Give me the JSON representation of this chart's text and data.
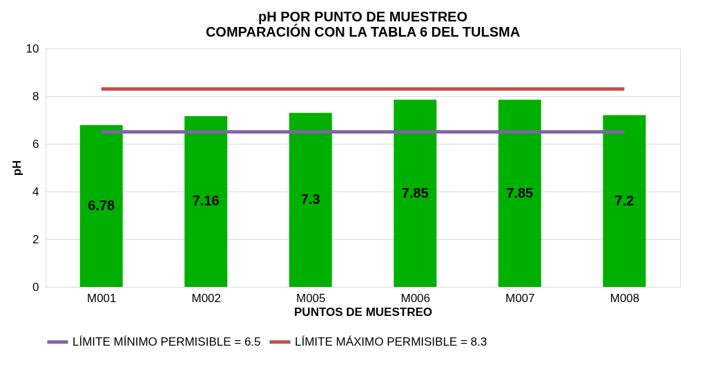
{
  "chart_data": {
    "type": "bar",
    "title": "pH POR PUNTO DE MUESTREO\nCOMPARACIÓN CON LA TABLA 6 DEL TULSMA",
    "xlabel": "PUNTOS DE MUESTREO",
    "ylabel": "pH",
    "categories": [
      "M001",
      "M002",
      "M005",
      "M006",
      "M007",
      "M008"
    ],
    "series": [
      {
        "color": "#00b000",
        "values": [
          6.78,
          7.16,
          7.3,
          7.85,
          7.85,
          7.2
        ],
        "value_labels": [
          "6.78",
          "7.16",
          "7.3",
          "7.85",
          "7.85",
          "7.2"
        ]
      },
      {
        "type": "line",
        "name": "LÍMITE MÍNIMO PERMISIBLE = 6.5",
        "color": "#8064a2",
        "values": [
          6.5,
          6.5,
          6.5,
          6.5,
          6.5,
          6.5
        ]
      },
      {
        "type": "line",
        "name": "LÍMITE MÁXIMO PERMISIBLE = 8.3",
        "color": "#c0504d",
        "values": [
          8.3,
          8.3,
          8.3,
          8.3,
          8.3,
          8.3
        ]
      }
    ],
    "ylim": [
      0,
      10
    ],
    "yticks": [
      0,
      2,
      4,
      6,
      8,
      10
    ],
    "grid": "y",
    "legend": "bottom"
  }
}
